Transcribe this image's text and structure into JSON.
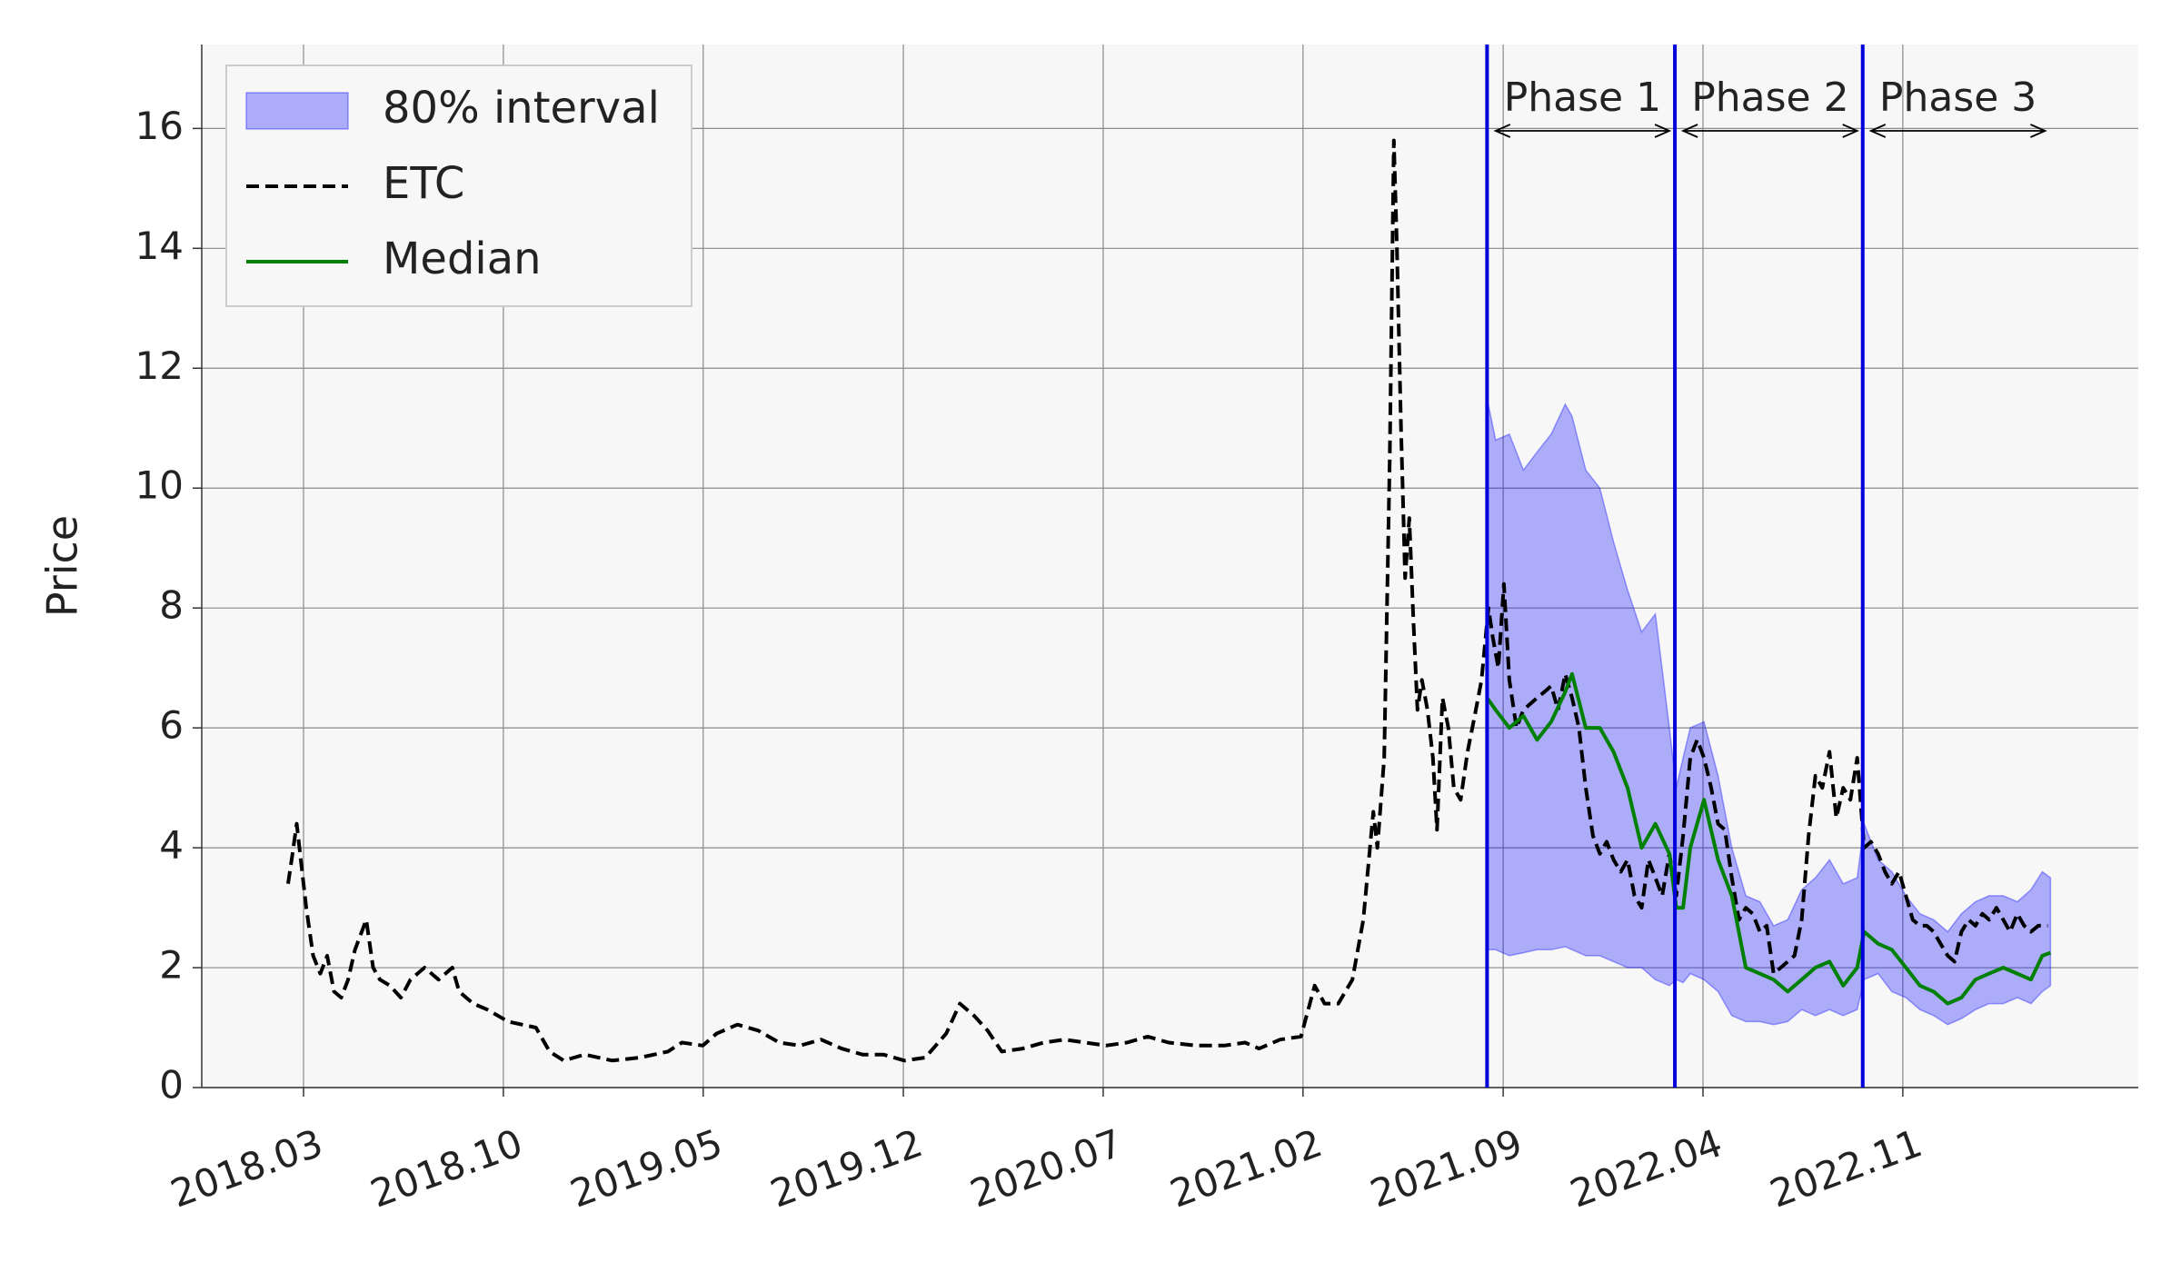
{
  "chart_data": {
    "type": "line",
    "ylabel": "Price",
    "xlim": [
      2017.87,
      2023.52
    ],
    "ylim": [
      0,
      17.4
    ],
    "xticks": [
      {
        "value": 2018.167,
        "label": "2018.03"
      },
      {
        "value": 2018.75,
        "label": "2018.10"
      },
      {
        "value": 2019.333,
        "label": "2019.05"
      },
      {
        "value": 2019.917,
        "label": "2019.12"
      },
      {
        "value": 2020.5,
        "label": "2020.07"
      },
      {
        "value": 2021.083,
        "label": "2021.02"
      },
      {
        "value": 2021.667,
        "label": "2021.09"
      },
      {
        "value": 2022.25,
        "label": "2022.04"
      },
      {
        "value": 2022.833,
        "label": "2022.11"
      }
    ],
    "yticks": [
      0,
      2,
      4,
      6,
      8,
      10,
      12,
      14,
      16
    ],
    "grid": true,
    "legend": "upper left",
    "series": [
      {
        "name": "80% interval",
        "kind": "band",
        "color": "#0000ff",
        "x": [
          2021.62,
          2021.645,
          2021.685,
          2021.726,
          2021.766,
          2021.807,
          2021.848,
          2021.868,
          2021.908,
          2021.949,
          2021.989,
          2022.03,
          2022.071,
          2022.111,
          2022.152,
          2022.172,
          2022.192,
          2022.213,
          2022.253,
          2022.294,
          2022.334,
          2022.375,
          2022.416,
          2022.456,
          2022.497,
          2022.538,
          2022.578,
          2022.619,
          2022.659,
          2022.7,
          2022.72,
          2022.761,
          2022.801,
          2022.842,
          2022.883,
          2022.923,
          2022.964,
          2023.004,
          2023.045,
          2023.085,
          2023.126,
          2023.167,
          2023.207,
          2023.24,
          2023.264
        ],
        "lower": [
          2.3,
          2.3,
          2.2,
          2.25,
          2.3,
          2.3,
          2.35,
          2.3,
          2.2,
          2.2,
          2.1,
          2.0,
          2.0,
          1.8,
          1.7,
          1.8,
          1.75,
          1.9,
          1.8,
          1.6,
          1.2,
          1.1,
          1.1,
          1.05,
          1.1,
          1.3,
          1.2,
          1.3,
          1.2,
          1.3,
          1.8,
          1.9,
          1.6,
          1.5,
          1.3,
          1.2,
          1.05,
          1.15,
          1.3,
          1.4,
          1.4,
          1.5,
          1.4,
          1.6,
          1.7
        ],
        "upper": [
          11.5,
          10.8,
          10.9,
          10.3,
          10.6,
          10.9,
          11.4,
          11.2,
          10.3,
          10.0,
          9.1,
          8.3,
          7.6,
          7.9,
          6.0,
          5.0,
          5.5,
          6.0,
          6.1,
          5.2,
          4.0,
          3.2,
          3.1,
          2.7,
          2.8,
          3.3,
          3.5,
          3.8,
          3.4,
          3.5,
          4.4,
          3.8,
          3.6,
          3.2,
          2.9,
          2.8,
          2.6,
          2.9,
          3.1,
          3.2,
          3.2,
          3.1,
          3.3,
          3.6,
          3.5
        ]
      },
      {
        "name": "ETC",
        "kind": "line",
        "color": "#000000",
        "dashed": true,
        "x": [
          2018.122,
          2018.135,
          2018.147,
          2018.159,
          2018.175,
          2018.195,
          2018.216,
          2018.236,
          2018.256,
          2018.277,
          2018.297,
          2018.317,
          2018.337,
          2018.35,
          2018.37,
          2018.39,
          2018.419,
          2018.451,
          2018.479,
          2018.52,
          2018.561,
          2018.601,
          2018.621,
          2018.662,
          2018.703,
          2018.764,
          2018.845,
          2018.885,
          2018.926,
          2018.987,
          2019.068,
          2019.149,
          2019.23,
          2019.271,
          2019.332,
          2019.372,
          2019.433,
          2019.494,
          2019.555,
          2019.616,
          2019.677,
          2019.737,
          2019.798,
          2019.859,
          2019.92,
          2019.981,
          2020.042,
          2020.082,
          2020.123,
          2020.163,
          2020.204,
          2020.265,
          2020.326,
          2020.387,
          2020.448,
          2020.508,
          2020.569,
          2020.63,
          2020.691,
          2020.772,
          2020.853,
          2020.914,
          2020.955,
          2021.016,
          2021.077,
          2021.117,
          2021.146,
          2021.186,
          2021.227,
          2021.259,
          2021.288,
          2021.3,
          2021.32,
          2021.336,
          2021.348,
          2021.357,
          2021.369,
          2021.381,
          2021.393,
          2021.405,
          2021.417,
          2021.43,
          2021.446,
          2021.462,
          2021.474,
          2021.49,
          2021.507,
          2021.523,
          2021.543,
          2021.563,
          2021.584,
          2021.604,
          2021.624,
          2021.637,
          2021.653,
          2021.669,
          2021.685,
          2021.706,
          2021.726,
          2021.746,
          2021.766,
          2021.787,
          2021.807,
          2021.827,
          2021.848,
          2021.868,
          2021.888,
          2021.908,
          2021.929,
          2021.949,
          2021.969,
          2021.989,
          2022.01,
          2022.03,
          2022.05,
          2022.071,
          2022.091,
          2022.111,
          2022.131,
          2022.152,
          2022.172,
          2022.192,
          2022.213,
          2022.233,
          2022.253,
          2022.274,
          2022.294,
          2022.314,
          2022.334,
          2022.355,
          2022.375,
          2022.395,
          2022.416,
          2022.436,
          2022.456,
          2022.477,
          2022.497,
          2022.517,
          2022.538,
          2022.558,
          2022.578,
          2022.598,
          2022.619,
          2022.639,
          2022.659,
          2022.68,
          2022.7,
          2022.72,
          2022.74,
          2022.761,
          2022.781,
          2022.801,
          2022.822,
          2022.842,
          2022.862,
          2022.883,
          2022.903,
          2022.923,
          2022.943,
          2022.964,
          2022.984,
          2023.004,
          2023.025,
          2023.045,
          2023.065,
          2023.085,
          2023.106,
          2023.126,
          2023.146,
          2023.167,
          2023.187,
          2023.207,
          2023.228,
          2023.256
        ],
        "values": [
          3.4,
          3.9,
          4.4,
          3.8,
          3.0,
          2.2,
          1.9,
          2.2,
          1.6,
          1.5,
          1.8,
          2.3,
          2.6,
          2.8,
          2.0,
          1.8,
          1.7,
          1.5,
          1.8,
          2.0,
          1.8,
          2.0,
          1.6,
          1.4,
          1.3,
          1.1,
          1.0,
          0.6,
          0.45,
          0.55,
          0.45,
          0.5,
          0.6,
          0.75,
          0.7,
          0.9,
          1.05,
          0.95,
          0.75,
          0.7,
          0.8,
          0.65,
          0.55,
          0.55,
          0.45,
          0.5,
          0.9,
          1.4,
          1.2,
          0.95,
          0.6,
          0.65,
          0.75,
          0.8,
          0.75,
          0.7,
          0.75,
          0.85,
          0.75,
          0.7,
          0.7,
          0.75,
          0.65,
          0.8,
          0.85,
          1.7,
          1.4,
          1.4,
          1.8,
          2.8,
          4.6,
          4.0,
          5.5,
          10.5,
          15.8,
          14.0,
          11.0,
          8.5,
          9.5,
          7.8,
          6.3,
          6.8,
          6.3,
          5.5,
          4.3,
          6.5,
          6.0,
          5.0,
          4.8,
          5.6,
          6.2,
          6.8,
          8.0,
          7.5,
          7.0,
          8.4,
          6.8,
          6.0,
          6.3,
          6.4,
          6.5,
          6.6,
          6.7,
          6.3,
          6.9,
          6.5,
          6.0,
          5.0,
          4.2,
          3.9,
          4.1,
          3.8,
          3.6,
          3.8,
          3.2,
          3.0,
          3.8,
          3.5,
          3.2,
          3.9,
          3.2,
          4.2,
          5.5,
          5.8,
          5.5,
          5.0,
          4.4,
          4.3,
          3.5,
          2.8,
          3.0,
          2.9,
          2.6,
          2.7,
          1.9,
          2.0,
          2.1,
          2.2,
          2.8,
          4.2,
          5.2,
          5.0,
          5.6,
          4.5,
          5.0,
          4.8,
          5.5,
          4.0,
          4.1,
          3.9,
          3.6,
          3.4,
          3.6,
          3.2,
          2.8,
          2.7,
          2.7,
          2.6,
          2.4,
          2.2,
          2.1,
          2.6,
          2.8,
          2.7,
          2.9,
          2.8,
          3.0,
          2.8,
          2.6,
          2.9,
          2.7,
          2.6,
          2.7,
          2.7
        ]
      },
      {
        "name": "Median",
        "kind": "line",
        "color": "#008000",
        "x": [
          2021.62,
          2021.645,
          2021.685,
          2021.726,
          2021.766,
          2021.807,
          2021.848,
          2021.868,
          2021.908,
          2021.949,
          2021.989,
          2022.03,
          2022.071,
          2022.111,
          2022.152,
          2022.172,
          2022.192,
          2022.213,
          2022.253,
          2022.294,
          2022.334,
          2022.375,
          2022.416,
          2022.456,
          2022.497,
          2022.538,
          2022.578,
          2022.619,
          2022.659,
          2022.7,
          2022.72,
          2022.761,
          2022.801,
          2022.842,
          2022.883,
          2022.923,
          2022.964,
          2023.004,
          2023.045,
          2023.085,
          2023.126,
          2023.167,
          2023.207,
          2023.24,
          2023.264
        ],
        "values": [
          6.5,
          6.3,
          6.0,
          6.2,
          5.8,
          6.1,
          6.6,
          6.9,
          6.0,
          6.0,
          5.6,
          5.0,
          4.0,
          4.4,
          3.9,
          3.0,
          3.0,
          4.0,
          4.8,
          3.8,
          3.2,
          2.0,
          1.9,
          1.8,
          1.6,
          1.8,
          2.0,
          2.1,
          1.7,
          2.0,
          2.6,
          2.4,
          2.3,
          2.0,
          1.7,
          1.6,
          1.4,
          1.5,
          1.8,
          1.9,
          2.0,
          1.9,
          1.8,
          2.2,
          2.25
        ]
      }
    ],
    "vlines": {
      "color": "#0000dd",
      "x": [
        2021.62,
        2022.168,
        2022.716
      ]
    },
    "phases": [
      {
        "label": "Phase 1",
        "start": 2021.645,
        "end": 2022.152
      },
      {
        "label": "Phase 2",
        "start": 2022.192,
        "end": 2022.7
      },
      {
        "label": "Phase 3",
        "start": 2022.74,
        "end": 2023.248
      }
    ]
  }
}
